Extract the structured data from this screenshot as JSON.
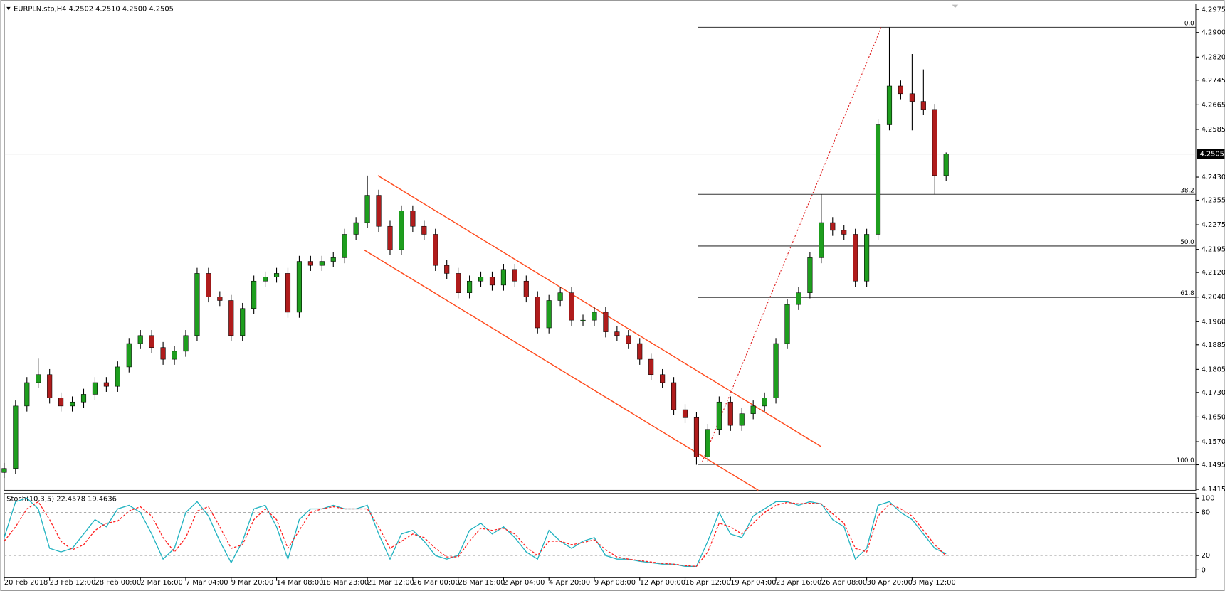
{
  "chart_data": {
    "type": "candlestick",
    "title": "EURPLN.stp,H4  4.2502 4.2510 4.2500 4.2505",
    "current_price": 4.2505,
    "xlim": [
      0,
      105
    ],
    "xticks": [
      {
        "value": 0,
        "label": "20 Feb 2018"
      },
      {
        "value": 4,
        "label": "23 Feb 12:00"
      },
      {
        "value": 8,
        "label": "28 Feb 00:00"
      },
      {
        "value": 12,
        "label": "2 Mar 16:00"
      },
      {
        "value": 16,
        "label": "7 Mar 04:00"
      },
      {
        "value": 20,
        "label": "9 Mar 20:00"
      },
      {
        "value": 24,
        "label": "14 Mar 08:00"
      },
      {
        "value": 28,
        "label": "18 Mar 23:00"
      },
      {
        "value": 32,
        "label": "21 Mar 12:00"
      },
      {
        "value": 36,
        "label": "26 Mar 00:00"
      },
      {
        "value": 40,
        "label": "28 Mar 16:00"
      },
      {
        "value": 44,
        "label": "2 Apr 04:00"
      },
      {
        "value": 48,
        "label": "4 Apr 20:00"
      },
      {
        "value": 52,
        "label": "9 Apr 08:00"
      },
      {
        "value": 56,
        "label": "12 Apr 00:00"
      },
      {
        "value": 60,
        "label": "16 Apr 12:00"
      },
      {
        "value": 64,
        "label": "19 Apr 04:00"
      },
      {
        "value": 68,
        "label": "23 Apr 16:00"
      },
      {
        "value": 72,
        "label": "26 Apr 08:00"
      },
      {
        "value": 76,
        "label": "30 Apr 20:00"
      },
      {
        "value": 80,
        "label": "3 May 12:00"
      }
    ],
    "ylim": [
      4.1412,
      4.2993
    ],
    "yticks": [
      4.2975,
      {
        "value": 4.29,
        "label": "4.2900"
      },
      {
        "value": 4.282,
        "label": "4.2820"
      },
      4.2745,
      4.2665,
      4.2585,
      {
        "value": 4.243,
        "label": "4.2430"
      },
      4.2355,
      4.2275,
      4.2195,
      {
        "value": 4.212,
        "label": "4.2120"
      },
      {
        "value": 4.204,
        "label": "4.2040"
      },
      {
        "value": 4.196,
        "label": "4.1960"
      },
      4.1885,
      4.1805,
      {
        "value": 4.173,
        "label": "4.1730"
      },
      {
        "value": 4.165,
        "label": "4.1650"
      },
      {
        "value": 4.157,
        "label": "4.1570"
      },
      4.1495,
      4.1415
    ],
    "up_color": "#1e9e1e",
    "down_color": "#b01c1c",
    "candles": {
      "open": [
        4.147,
        4.1483,
        4.1686,
        4.1762,
        4.1788,
        4.1712,
        4.1686,
        4.1699,
        4.1724,
        4.1762,
        4.175,
        4.1813,
        4.1889,
        4.1915,
        4.1876,
        4.1838,
        4.1864,
        4.1915,
        4.2117,
        4.2041,
        4.2029,
        4.1915,
        4.2003,
        4.2092,
        4.2105,
        4.2117,
        4.1991,
        4.2156,
        4.2143,
        4.2156,
        4.2168,
        4.2244,
        4.2282,
        4.2371,
        4.227,
        4.2194,
        4.232,
        4.227,
        4.2244,
        4.2143,
        4.2117,
        4.2054,
        4.2092,
        4.2105,
        4.2079,
        4.213,
        4.2092,
        4.2041,
        4.194,
        4.2029,
        4.2054,
        4.1965,
        4.1965,
        4.1991,
        4.1927,
        4.1915,
        4.1889,
        4.1838,
        4.1788,
        4.1762,
        4.1674,
        4.1648,
        4.1521,
        4.161,
        4.1699,
        4.1623,
        4.1661,
        4.1686,
        4.1712,
        4.1889,
        4.2016,
        4.2054,
        4.2168,
        4.2282,
        4.2257,
        4.2244,
        4.2092,
        4.2244,
        4.26,
        4.2726,
        4.2701,
        4.2676,
        4.265,
        4.2435
      ],
      "high": [
        4.1501,
        4.1704,
        4.178,
        4.184,
        4.1806,
        4.173,
        4.1717,
        4.1742,
        4.178,
        4.178,
        4.1831,
        4.1907,
        4.1933,
        4.1933,
        4.1894,
        4.1882,
        4.1933,
        4.2135,
        4.2135,
        4.2059,
        4.2047,
        4.2021,
        4.211,
        4.2123,
        4.2135,
        4.2135,
        4.2174,
        4.2174,
        4.2174,
        4.2186,
        4.2262,
        4.23,
        4.2435,
        4.2389,
        4.2288,
        4.2338,
        4.2338,
        4.2288,
        4.2262,
        4.2161,
        4.2135,
        4.211,
        4.2123,
        4.2123,
        4.2148,
        4.2148,
        4.211,
        4.2059,
        4.2047,
        4.2072,
        4.2072,
        4.1983,
        4.2009,
        4.2009,
        4.1945,
        4.1933,
        4.1907,
        4.1856,
        4.1806,
        4.178,
        4.1692,
        4.1666,
        4.1628,
        4.1717,
        4.1717,
        4.1679,
        4.1704,
        4.173,
        4.1907,
        4.2034,
        4.2072,
        4.2186,
        4.2374,
        4.23,
        4.2275,
        4.2262,
        4.2262,
        4.2618,
        4.2917,
        4.2744,
        4.283,
        4.278,
        4.2668,
        4.251
      ],
      "low": [
        4.1452,
        4.1465,
        4.1668,
        4.1744,
        4.1694,
        4.1668,
        4.1668,
        4.1681,
        4.1706,
        4.1732,
        4.1732,
        4.1795,
        4.1871,
        4.1858,
        4.182,
        4.182,
        4.1846,
        4.1897,
        4.2023,
        4.2011,
        4.1897,
        4.1897,
        4.1985,
        4.2074,
        4.2087,
        4.1973,
        4.1973,
        4.2125,
        4.2125,
        4.2138,
        4.215,
        4.2226,
        4.2264,
        4.2252,
        4.2176,
        4.2176,
        4.2252,
        4.2226,
        4.2125,
        4.2099,
        4.2036,
        4.2036,
        4.2074,
        4.2061,
        4.2061,
        4.2074,
        4.2023,
        4.1922,
        4.1922,
        4.2011,
        4.1947,
        4.1947,
        4.1947,
        4.1909,
        4.1897,
        4.1871,
        4.182,
        4.177,
        4.1744,
        4.1656,
        4.163,
        4.1495,
        4.1503,
        4.1592,
        4.1605,
        4.1605,
        4.1643,
        4.1668,
        4.1694,
        4.1871,
        4.1998,
        4.2036,
        4.215,
        4.2239,
        4.2226,
        4.2074,
        4.2074,
        4.2226,
        4.2582,
        4.2683,
        4.2582,
        4.2632,
        4.2374,
        4.2417
      ],
      "close": [
        4.1483,
        4.1686,
        4.1762,
        4.1788,
        4.1712,
        4.1686,
        4.1699,
        4.1724,
        4.1762,
        4.175,
        4.1813,
        4.1889,
        4.1915,
        4.1876,
        4.1838,
        4.1864,
        4.1915,
        4.2117,
        4.2041,
        4.2029,
        4.1915,
        4.2003,
        4.2092,
        4.2105,
        4.2117,
        4.1991,
        4.2156,
        4.2143,
        4.2156,
        4.2168,
        4.2244,
        4.2282,
        4.2371,
        4.227,
        4.2194,
        4.232,
        4.227,
        4.2244,
        4.2143,
        4.2117,
        4.2054,
        4.2092,
        4.2105,
        4.2079,
        4.213,
        4.2092,
        4.2041,
        4.194,
        4.2029,
        4.2054,
        4.1965,
        4.1965,
        4.1991,
        4.1927,
        4.1915,
        4.1889,
        4.1838,
        4.1788,
        4.1762,
        4.1674,
        4.1648,
        4.1521,
        4.161,
        4.1699,
        4.1623,
        4.1661,
        4.1686,
        4.1712,
        4.1889,
        4.2016,
        4.2054,
        4.2168,
        4.2282,
        4.2257,
        4.2244,
        4.2092,
        4.2244,
        4.26,
        4.2726,
        4.2701,
        4.2676,
        4.265,
        4.2435,
        4.2505
      ]
    },
    "fib_start": 61.15,
    "fib_color": "#333333",
    "fib_levels": [
      {
        "label": "0.0",
        "price": 4.2917
      },
      {
        "label": "38.2",
        "price": 4.2374
      },
      {
        "label": "50.0",
        "price": 4.2206
      },
      {
        "label": "61.8",
        "price": 4.2039
      },
      {
        "label": "100.0",
        "price": 4.1496
      }
    ],
    "channel_color": "#ff4a1c",
    "channel": [
      {
        "x": [
          32.93,
          71.98
        ],
        "y": [
          4.2435,
          4.1554
        ]
      },
      {
        "x": [
          31.68,
          66.45
        ],
        "y": [
          4.2194,
          4.1412
        ]
      }
    ],
    "fib_trend": {
      "x": [
        61.5,
        77.28
      ],
      "y": [
        4.1504,
        4.2917
      ]
    },
    "stoch": {
      "title": "Stoch(10,3,5) 22.4578 19.4636",
      "ylim": [
        -10.9,
        106.5
      ],
      "yticks": [
        100,
        80,
        20,
        0
      ],
      "levels": [
        80,
        20
      ],
      "main_color": "#20b2c0",
      "signal_color": "#ff2020",
      "main": [
        45,
        95,
        100,
        85,
        30,
        25,
        30,
        50,
        70,
        60,
        85,
        90,
        80,
        50,
        15,
        30,
        80,
        95,
        75,
        40,
        10,
        40,
        85,
        90,
        60,
        15,
        70,
        85,
        85,
        90,
        85,
        85,
        90,
        50,
        15,
        50,
        55,
        40,
        20,
        15,
        20,
        55,
        65,
        50,
        60,
        45,
        25,
        15,
        55,
        40,
        30,
        40,
        45,
        20,
        15,
        15,
        12,
        10,
        8,
        8,
        5,
        5,
        40,
        80,
        50,
        45,
        75,
        85,
        95,
        95,
        90,
        95,
        92,
        70,
        60,
        15,
        30,
        90,
        95,
        80,
        70,
        50,
        30,
        22.4578
      ],
      "signal": [
        40,
        60,
        85,
        95,
        70,
        40,
        28,
        35,
        55,
        65,
        68,
        82,
        88,
        75,
        45,
        25,
        45,
        82,
        88,
        60,
        30,
        35,
        70,
        85,
        70,
        30,
        55,
        80,
        85,
        88,
        85,
        85,
        85,
        60,
        30,
        40,
        50,
        45,
        30,
        18,
        18,
        40,
        58,
        55,
        58,
        50,
        32,
        20,
        40,
        40,
        35,
        38,
        42,
        28,
        18,
        15,
        13,
        11,
        9,
        8,
        6,
        5,
        25,
        65,
        60,
        50,
        65,
        80,
        90,
        94,
        92,
        93,
        92,
        78,
        65,
        30,
        25,
        75,
        92,
        85,
        75,
        55,
        35,
        19.4636
      ]
    }
  }
}
